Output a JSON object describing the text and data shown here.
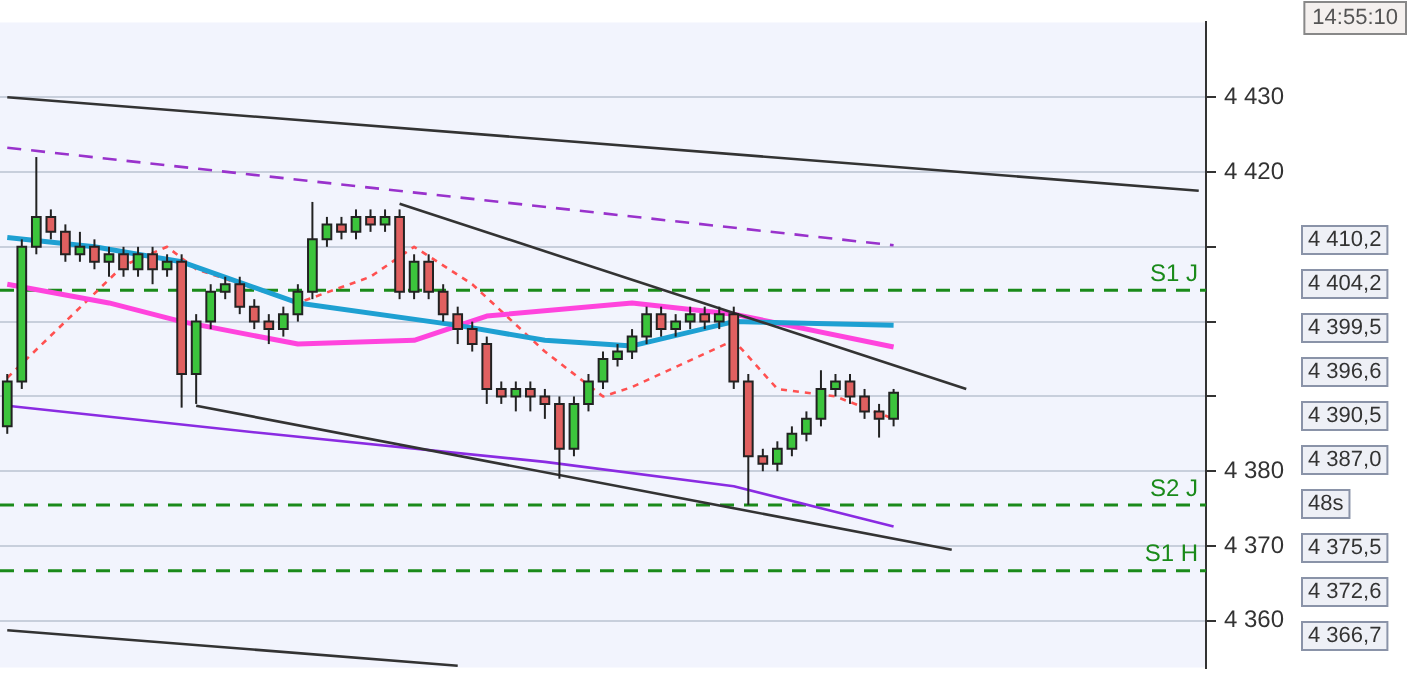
{
  "chart_data": {
    "type": "candlestick",
    "categories": [
      null,
      null,
      null,
      null,
      null,
      null,
      null,
      null,
      null,
      null,
      null,
      null,
      null,
      null,
      null,
      null,
      null,
      null,
      null,
      null,
      null,
      null,
      null,
      null,
      null,
      null,
      null,
      null,
      null,
      null,
      null,
      null,
      null,
      null,
      null,
      null,
      null,
      null,
      null,
      null,
      null,
      null,
      null,
      null,
      null,
      null,
      null,
      null,
      null,
      null,
      null,
      null,
      null,
      null,
      null,
      null,
      null,
      null,
      null,
      null,
      null,
      null,
      null,
      null,
      null,
      null,
      null,
      null,
      null,
      null,
      null,
      null,
      null,
      null,
      null,
      null,
      null,
      null,
      null,
      null,
      null,
      null,
      null
    ],
    "ohlc": [
      [
        4386,
        4393,
        4385,
        4392
      ],
      [
        4392,
        4411,
        4391,
        4410
      ],
      [
        4410,
        4422,
        4409,
        4414
      ],
      [
        4414,
        4415,
        4411,
        4412
      ],
      [
        4412,
        4413,
        4408,
        4409
      ],
      [
        4409,
        4412,
        4408,
        4410
      ],
      [
        4410,
        4411,
        4407,
        4408
      ],
      [
        4408,
        4410,
        4406,
        4409
      ],
      [
        4409,
        4410,
        4406,
        4407
      ],
      [
        4407,
        4410,
        4406,
        4409
      ],
      [
        4409,
        4410,
        4405,
        4407
      ],
      [
        4407,
        4409,
        4406,
        4408
      ],
      [
        4408,
        4409,
        4388.5,
        4393
      ],
      [
        4393,
        4401,
        4389,
        4400
      ],
      [
        4400,
        4405,
        4399,
        4404
      ],
      [
        4404,
        4406,
        4403,
        4405
      ],
      [
        4405,
        4406,
        4401,
        4402
      ],
      [
        4402,
        4403,
        4399,
        4400
      ],
      [
        4400,
        4401,
        4397,
        4399
      ],
      [
        4399,
        4402,
        4398,
        4401
      ],
      [
        4401,
        4405,
        4400,
        4404
      ],
      [
        4404,
        4416,
        4403,
        4411
      ],
      [
        4411,
        4414,
        4410,
        4413
      ],
      [
        4413,
        4414,
        4411,
        4412
      ],
      [
        4412,
        4415,
        4411,
        4414
      ],
      [
        4414,
        4415,
        4412,
        4413
      ],
      [
        4413,
        4415,
        4412,
        4414
      ],
      [
        4414,
        4415,
        4403,
        4404
      ],
      [
        4404,
        4409,
        4403,
        4408
      ],
      [
        4408,
        4409,
        4403,
        4404
      ],
      [
        4404,
        4405,
        4400,
        4401
      ],
      [
        4401,
        4402,
        4397,
        4399
      ],
      [
        4399,
        4400,
        4396,
        4397
      ],
      [
        4397,
        4398,
        4389,
        4391
      ],
      [
        4391,
        4392,
        4389,
        4390
      ],
      [
        4390,
        4392,
        4388,
        4391
      ],
      [
        4391,
        4392,
        4388,
        4390
      ],
      [
        4390,
        4391,
        4387,
        4389
      ],
      [
        4389,
        4390,
        4379,
        4383
      ],
      [
        4383,
        4390,
        4382,
        4389
      ],
      [
        4389,
        4393,
        4388,
        4392
      ],
      [
        4392,
        4396,
        4391,
        4395
      ],
      [
        4395,
        4397,
        4394,
        4396
      ],
      [
        4396,
        4399,
        4395,
        4398
      ],
      [
        4398,
        4402,
        4397,
        4401
      ],
      [
        4401,
        4402,
        4398,
        4399
      ],
      [
        4399,
        4401,
        4398,
        4400
      ],
      [
        4400,
        4402,
        4399,
        4401
      ],
      [
        4401,
        4402,
        4399,
        4400
      ],
      [
        4400,
        4402,
        4399,
        4401
      ],
      [
        4401,
        4402,
        4391,
        4392
      ],
      [
        4392,
        4393,
        4375.5,
        4382
      ],
      [
        4382,
        4383,
        4380,
        4381
      ],
      [
        4381,
        4384,
        4380,
        4383
      ],
      [
        4383,
        4386,
        4382,
        4385
      ],
      [
        4385,
        4388,
        4384,
        4387
      ],
      [
        4387,
        4393.5,
        4386,
        4391
      ],
      [
        4391,
        4393,
        4390,
        4392
      ],
      [
        4392,
        4393,
        4389,
        4390
      ],
      [
        4390,
        4391,
        4387,
        4388
      ],
      [
        4388,
        4389,
        4384.5,
        4387
      ],
      [
        4387,
        4391,
        4386,
        4390.5
      ],
      null,
      null,
      null,
      null,
      null,
      null,
      null,
      null,
      null,
      null,
      null,
      null,
      null,
      null,
      null,
      null,
      null,
      null,
      null,
      null,
      null
    ],
    "series": [
      {
        "type": "line",
        "color": "#333333",
        "values": [
          4430,
          null,
          null,
          null,
          null,
          null,
          null,
          null,
          null,
          null,
          null,
          null,
          null,
          null,
          null,
          null,
          null,
          null,
          null,
          null,
          null,
          null,
          null,
          null,
          null,
          null,
          null,
          null,
          null,
          null,
          null,
          null,
          null,
          null,
          null,
          null,
          null,
          null,
          null,
          null,
          null,
          null,
          null,
          null,
          null,
          null,
          null,
          null,
          null,
          null,
          null,
          null,
          null,
          null,
          null,
          null,
          null,
          null,
          null,
          null,
          null,
          null,
          null,
          null,
          null,
          null,
          null,
          null,
          null,
          null,
          null,
          null,
          null,
          null,
          null,
          null,
          null,
          null,
          null,
          null,
          null,
          null,
          4417.5
        ]
      },
      {
        "type": "line",
        "color": "#333333",
        "values": [
          null,
          null,
          null,
          null,
          null,
          null,
          null,
          null,
          null,
          null,
          null,
          null,
          null,
          null,
          null,
          null,
          null,
          null,
          null,
          null,
          null,
          null,
          null,
          null,
          null,
          null,
          null,
          4415.75,
          null,
          null,
          null,
          null,
          null,
          null,
          null,
          null,
          null,
          null,
          null,
          null,
          null,
          null,
          null,
          null,
          null,
          null,
          null,
          null,
          null,
          null,
          null,
          null,
          null,
          null,
          null,
          null,
          null,
          null,
          null,
          null,
          null,
          null,
          null,
          null,
          null,
          null,
          4391,
          null,
          null,
          null,
          null,
          null,
          null,
          null,
          null,
          null,
          null,
          null,
          null,
          null,
          null,
          null,
          null
        ]
      },
      {
        "type": "line",
        "color": "#333333",
        "values": [
          null,
          null,
          null,
          null,
          null,
          null,
          null,
          null,
          null,
          null,
          null,
          null,
          null,
          4388.75,
          null,
          null,
          null,
          null,
          null,
          null,
          null,
          null,
          null,
          null,
          null,
          null,
          null,
          null,
          null,
          null,
          null,
          null,
          null,
          null,
          null,
          null,
          null,
          null,
          null,
          null,
          null,
          null,
          null,
          null,
          null,
          null,
          null,
          null,
          null,
          null,
          null,
          null,
          null,
          null,
          null,
          null,
          null,
          null,
          null,
          null,
          null,
          null,
          null,
          null,
          null,
          4369.5,
          null,
          null,
          null,
          null,
          null,
          null,
          null,
          null,
          null,
          null,
          null,
          null,
          null,
          null,
          null,
          null,
          null
        ]
      },
      {
        "type": "line",
        "color": "#333333",
        "values": [
          4358.75,
          null,
          null,
          null,
          null,
          null,
          null,
          null,
          null,
          null,
          null,
          null,
          null,
          null,
          null,
          null,
          null,
          null,
          null,
          null,
          null,
          null,
          null,
          null,
          null,
          null,
          null,
          null,
          null,
          null,
          null,
          4354,
          null,
          null,
          null,
          null,
          null,
          null,
          null,
          null,
          null,
          null,
          null,
          null,
          null,
          null,
          null,
          null,
          null,
          null,
          null,
          null,
          null,
          null,
          null,
          null,
          null,
          null,
          null,
          null,
          null,
          null,
          null,
          null,
          null,
          null,
          null,
          null,
          null,
          null,
          null,
          null,
          null,
          null,
          null,
          null,
          null,
          null,
          null,
          null,
          null,
          null,
          null
        ]
      },
      {
        "type": "line",
        "color": "#9932cc",
        "line_style": "dashed",
        "values": [
          4423.25,
          null,
          null,
          null,
          null,
          null,
          null,
          null,
          null,
          null,
          null,
          null,
          null,
          null,
          null,
          null,
          null,
          null,
          null,
          null,
          null,
          null,
          null,
          null,
          null,
          null,
          null,
          null,
          null,
          null,
          null,
          null,
          null,
          null,
          null,
          null,
          null,
          null,
          null,
          null,
          null,
          null,
          null,
          null,
          null,
          null,
          null,
          null,
          null,
          null,
          null,
          null,
          null,
          null,
          null,
          null,
          null,
          null,
          null,
          null,
          null,
          4410.2,
          null,
          null,
          null,
          null,
          null,
          null,
          null,
          null,
          null,
          null,
          null,
          null,
          null,
          null,
          null,
          null,
          null,
          null,
          null,
          null,
          null
        ]
      },
      {
        "type": "line",
        "color": "#8a2be2",
        "values": [
          4388.75,
          null,
          null,
          null,
          null,
          null,
          null,
          null,
          null,
          null,
          null,
          null,
          null,
          null,
          null,
          null,
          null,
          null,
          4385,
          null,
          null,
          null,
          null,
          null,
          null,
          null,
          null,
          null,
          null,
          null,
          null,
          null,
          null,
          null,
          null,
          null,
          null,
          4381.25,
          null,
          null,
          null,
          null,
          null,
          null,
          null,
          null,
          null,
          null,
          null,
          null,
          4378,
          null,
          null,
          null,
          null,
          null,
          null,
          null,
          null,
          null,
          null,
          4372.6,
          null,
          null,
          null,
          null,
          null,
          null,
          null,
          null,
          null,
          null,
          null,
          null,
          null,
          null,
          null,
          null,
          null,
          null,
          null,
          null,
          null
        ]
      },
      {
        "type": "line",
        "color": "#1ea0d2",
        "values": [
          4411.25,
          null,
          null,
          null,
          null,
          null,
          4410,
          null,
          null,
          null,
          null,
          null,
          4408,
          null,
          null,
          null,
          null,
          null,
          null,
          null,
          4402.5,
          null,
          null,
          null,
          null,
          null,
          null,
          null,
          null,
          null,
          null,
          4399.5,
          null,
          null,
          null,
          null,
          null,
          4397.5,
          null,
          null,
          null,
          null,
          null,
          4396.75,
          null,
          null,
          null,
          null,
          null,
          null,
          4400,
          null,
          null,
          null,
          null,
          null,
          null,
          null,
          null,
          null,
          null,
          4399.5,
          null,
          null,
          null,
          null,
          null,
          null,
          null,
          null,
          null,
          null,
          null,
          null,
          null,
          null,
          null,
          null,
          null,
          null,
          null,
          null,
          null
        ]
      },
      {
        "type": "line",
        "color": "#ff44dd",
        "values": [
          4405,
          null,
          null,
          null,
          null,
          null,
          null,
          4402.5,
          null,
          null,
          null,
          null,
          4400,
          null,
          null,
          null,
          null,
          null,
          null,
          null,
          4397,
          null,
          null,
          null,
          null,
          null,
          null,
          null,
          4397.5,
          null,
          null,
          null,
          null,
          4400.75,
          null,
          null,
          null,
          null,
          null,
          null,
          null,
          null,
          null,
          4402.5,
          null,
          null,
          null,
          null,
          null,
          null,
          4401,
          null,
          null,
          null,
          null,
          null,
          null,
          null,
          null,
          null,
          null,
          4396.6,
          null,
          null,
          null,
          null,
          null,
          null,
          null,
          null,
          null,
          null,
          null,
          null,
          null,
          null,
          null,
          null,
          null,
          null,
          null,
          null,
          null
        ]
      },
      {
        "type": "line",
        "color": "#ff5050",
        "line_style": "dotted",
        "values": [
          4392.5,
          null,
          null,
          null,
          null,
          null,
          null,
          null,
          4407.5,
          null,
          null,
          4410,
          null,
          4407,
          null,
          null,
          null,
          null,
          null,
          null,
          4402.5,
          null,
          null,
          null,
          null,
          4406,
          null,
          null,
          4410,
          null,
          null,
          null,
          4405,
          null,
          null,
          null,
          null,
          4396,
          null,
          null,
          null,
          4390,
          null,
          4391.25,
          null,
          null,
          null,
          null,
          null,
          null,
          4397.5,
          null,
          null,
          4391,
          null,
          null,
          null,
          4390,
          null,
          null,
          null,
          4387,
          null,
          null,
          null,
          null,
          null,
          null,
          null,
          null,
          null,
          null,
          null,
          null,
          null,
          null,
          null,
          null,
          null,
          null,
          null,
          null,
          null
        ]
      }
    ],
    "ylim": [
      4353.75,
      4440
    ],
    "yticks": [
      {
        "value": 4360,
        "label": "4 360"
      },
      {
        "value": 4370,
        "label": "4 370"
      },
      {
        "value": 4380,
        "label": "4 380"
      },
      {
        "value": 4390,
        "label": null
      },
      {
        "value": 4400,
        "label": null
      },
      {
        "value": 4410,
        "label": null
      },
      {
        "value": 4420,
        "label": "4 420"
      },
      {
        "value": 4430,
        "label": "4 430"
      }
    ],
    "ref_lines": [
      {
        "axis": "y",
        "value": 4404.2,
        "label": "S1 J",
        "color": "#1a8a1a",
        "line_style": "dashed"
      },
      {
        "axis": "y",
        "value": 4375.5,
        "label": "S2 J",
        "color": "#1a8a1a",
        "line_style": "dashed"
      },
      {
        "axis": "y",
        "value": 4366.7,
        "label": "S1 H",
        "color": "#1a8a1a",
        "line_style": "dashed"
      }
    ],
    "annotations": [
      "14:55:10",
      "4 410,2",
      "4 404,2",
      "4 399,5",
      "4 396,6",
      "4 390,5",
      "4 387,0",
      "48s",
      "4 375,5",
      "4 372,6",
      "4 366,7"
    ],
    "grid": "y",
    "legend": false,
    "tick_labels": "y",
    "marker": "none"
  }
}
